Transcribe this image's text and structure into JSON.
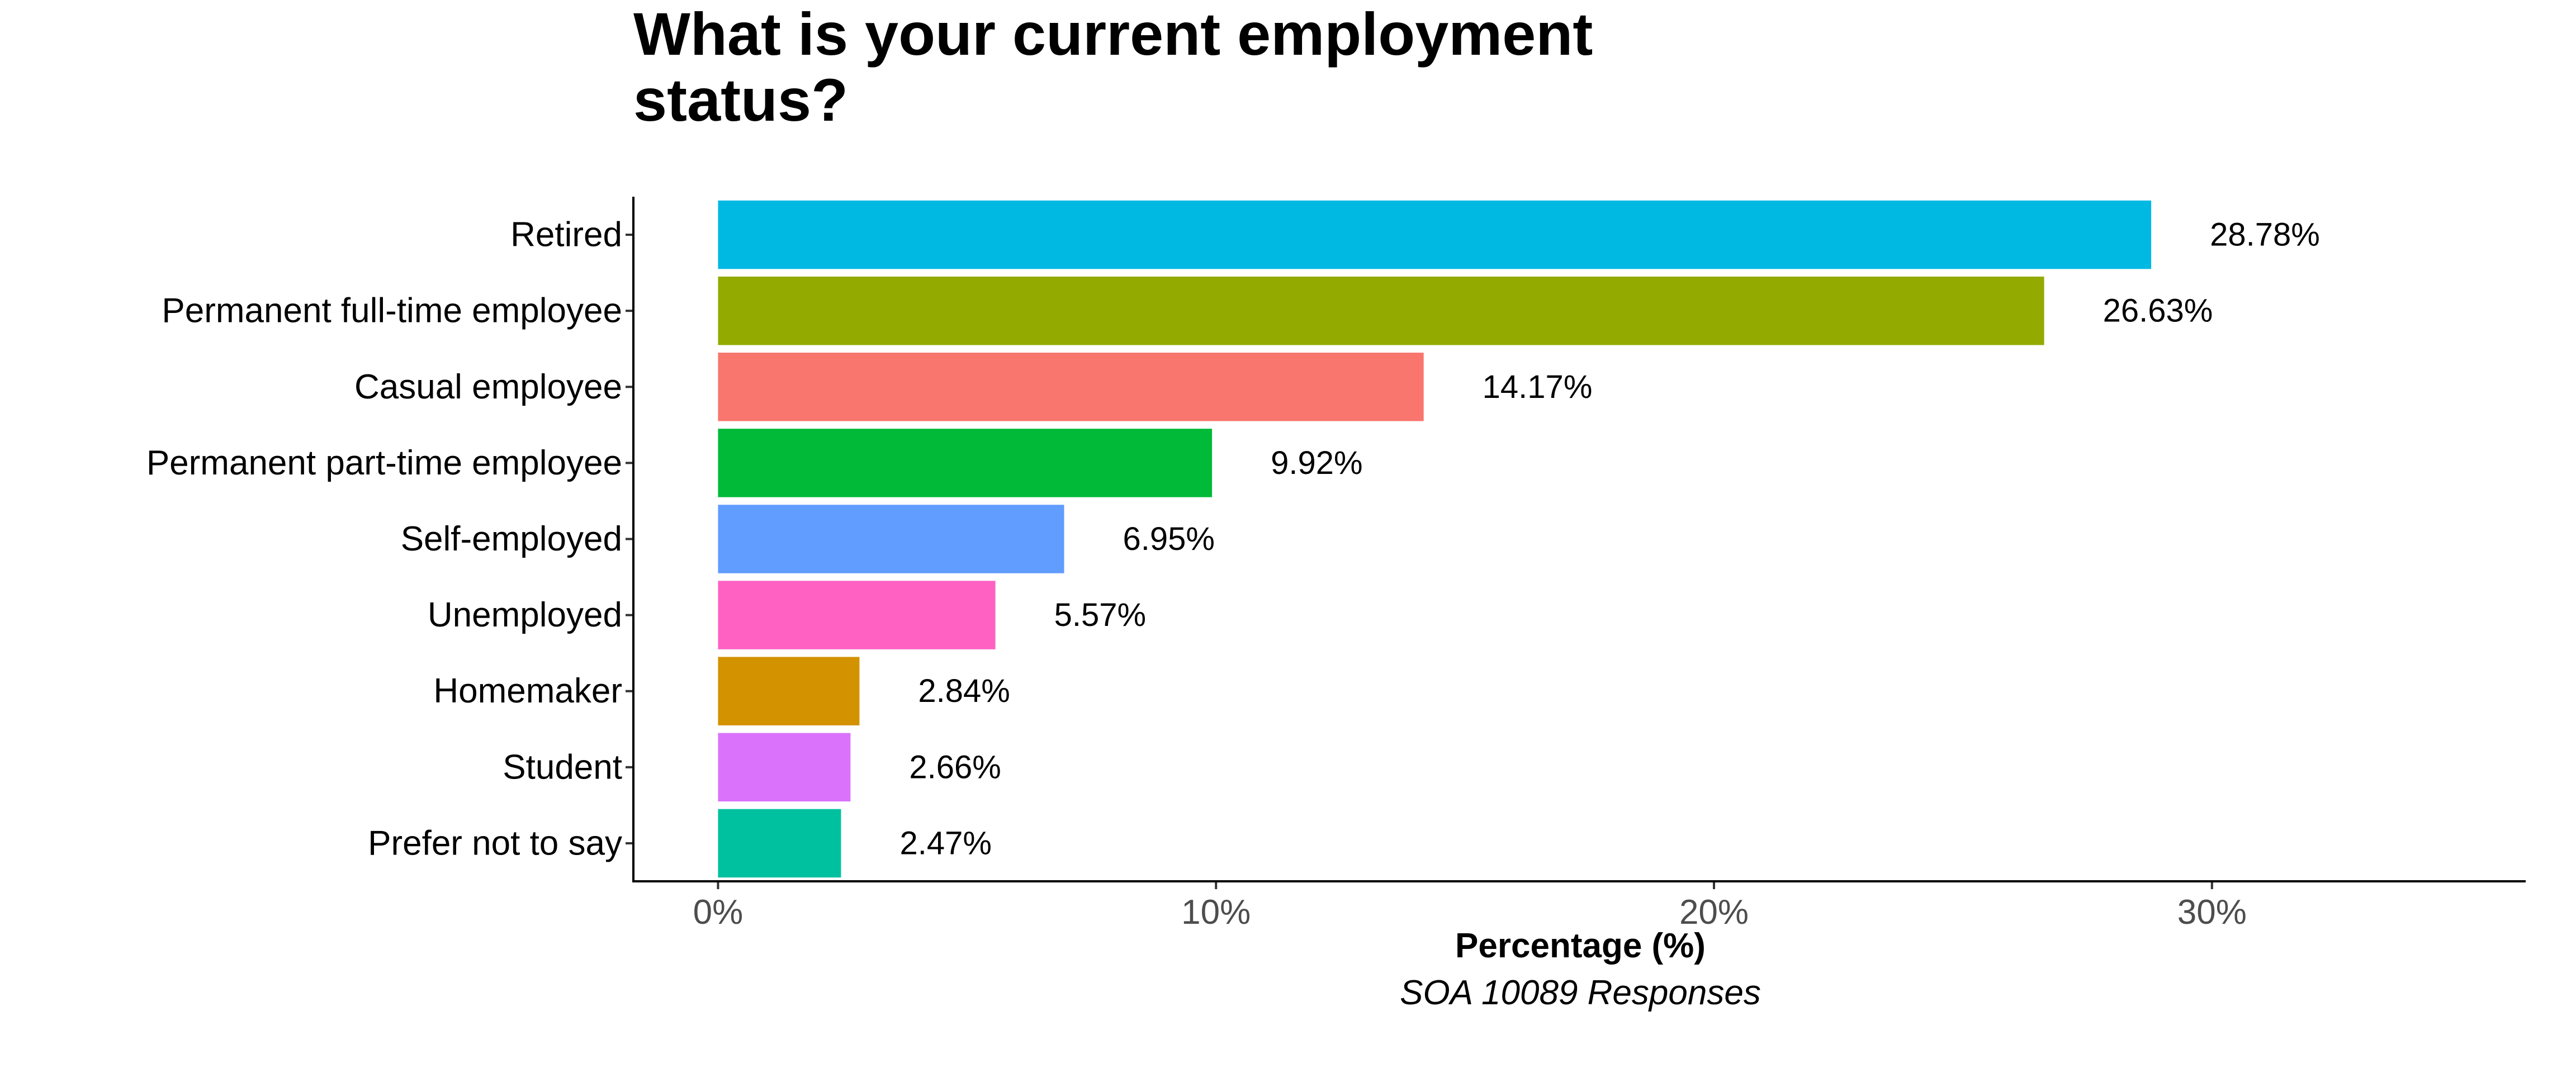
{
  "chart_data": {
    "type": "bar",
    "orientation": "horizontal",
    "title_lines": [
      "What is your current employment",
      "status?"
    ],
    "xlabel": "Percentage (%)",
    "ylabel": "",
    "caption": "SOA 10089 Responses",
    "xlim": [
      -1.7,
      36.3
    ],
    "x_ticks": [
      0,
      10,
      20,
      30
    ],
    "x_tick_labels": [
      "0%",
      "10%",
      "20%",
      "30%"
    ],
    "grid": false,
    "legend": "none",
    "categories": [
      "Retired",
      "Permanent full-time employee",
      "Casual employee",
      "Permanent part-time employee",
      "Self-employed",
      "Unemployed",
      "Homemaker",
      "Student",
      "Prefer not to say"
    ],
    "values": [
      28.78,
      26.63,
      14.17,
      9.92,
      6.95,
      5.57,
      2.84,
      2.66,
      2.47
    ],
    "value_labels": [
      "28.78%",
      "26.63%",
      "14.17%",
      "9.92%",
      "6.95%",
      "5.57%",
      "2.84%",
      "2.66%",
      "2.47%"
    ],
    "colors": [
      "#00B9E3",
      "#93AA00",
      "#F8766D",
      "#00BA38",
      "#619CFF",
      "#FF61C3",
      "#D39200",
      "#DB72FB",
      "#00C19F"
    ]
  }
}
